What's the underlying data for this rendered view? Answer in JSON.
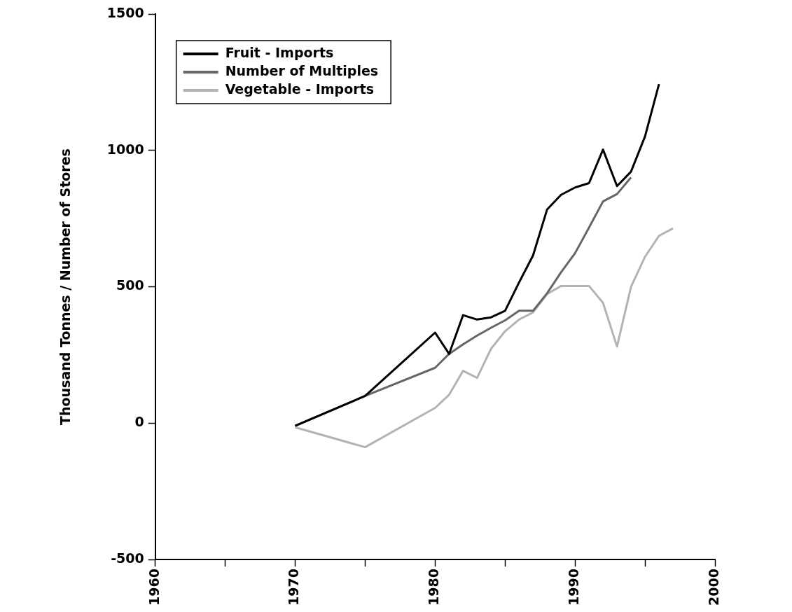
{
  "chart_data": {
    "type": "line",
    "ylabel": "Thousand Tonnes / Number of Stores",
    "xlim": [
      1960,
      2000
    ],
    "xticks": [
      1960,
      {
        "value": 1965,
        "label": null
      },
      1970,
      {
        "value": 1975,
        "label": null
      },
      1980,
      {
        "value": 1985,
        "label": null
      },
      1990,
      {
        "value": 1995,
        "label": null
      },
      2000
    ],
    "ylim": [
      -500,
      1500
    ],
    "yticks": [
      -500,
      0,
      500,
      1000,
      1500
    ],
    "grid": false,
    "legend": "top left",
    "marker": "none",
    "line_style": "solid",
    "series": [
      {
        "name": "Fruit - Imports",
        "color": "#000000",
        "x": [
          1970,
          1975,
          1980,
          1981,
          1982,
          1983,
          1984,
          1985,
          1986,
          1987,
          1988,
          1989,
          1990,
          1991,
          1992,
          1993,
          1994,
          1995,
          1996
        ],
        "values": [
          -10,
          100,
          332,
          254,
          396,
          380,
          388,
          412,
          516,
          615,
          783,
          837,
          864,
          880,
          1003,
          869,
          922,
          1051,
          1243
        ]
      },
      {
        "name": "Number of Multiples",
        "color": "#666666",
        "x": [
          1970,
          1975,
          1980,
          1981,
          1982,
          1983,
          1984,
          1985,
          1986,
          1987,
          1988,
          1989,
          1990,
          1991,
          1992,
          1993,
          1994
        ],
        "values": [
          -10,
          100,
          203,
          254,
          289,
          321,
          350,
          377,
          412,
          412,
          476,
          553,
          623,
          717,
          813,
          840,
          901
        ]
      },
      {
        "name": "Vegetable - Imports",
        "color": "#b3b3b3",
        "x": [
          1970,
          1975,
          1980,
          1981,
          1982,
          1983,
          1984,
          1985,
          1986,
          1987,
          1988,
          1989,
          1990,
          1991,
          1992,
          1993,
          1994,
          1995,
          1996,
          1997
        ],
        "values": [
          -15,
          -88,
          56,
          104,
          192,
          166,
          273,
          337,
          380,
          406,
          473,
          503,
          503,
          503,
          441,
          281,
          500,
          610,
          687,
          714
        ]
      }
    ]
  }
}
